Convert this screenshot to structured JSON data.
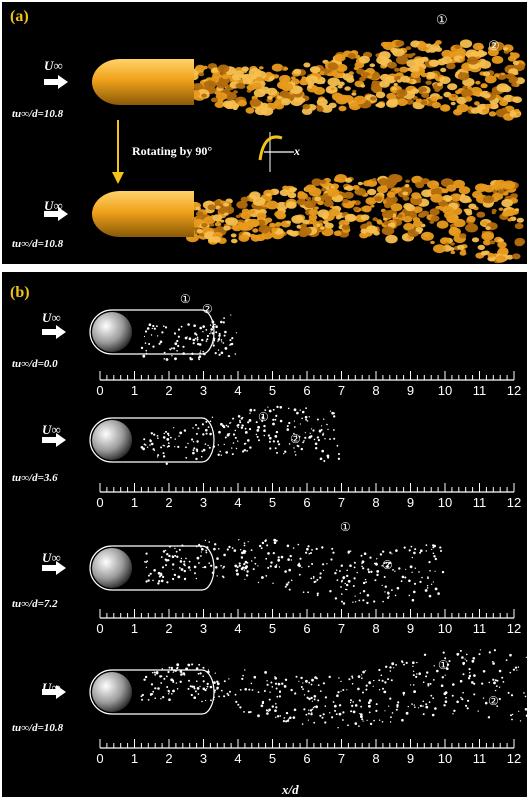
{
  "panel_a": {
    "label": "(a)",
    "freestream": "U∞",
    "time_top": "tu∞/d=10.8",
    "time_bottom": "tu∞/d=10.8",
    "rotation_text": "Rotating by 90°",
    "axis_x": "x",
    "marker1": "①",
    "marker2": "②",
    "colors": {
      "body": "#f0a21a",
      "wake": "#e89a1c",
      "arrow": "#f2c318"
    }
  },
  "panel_b": {
    "label": "(b)",
    "axis_label": "x/d",
    "tick_labels": [
      "0",
      "1",
      "2",
      "3",
      "4",
      "5",
      "6",
      "7",
      "8",
      "9",
      "10",
      "11",
      "12"
    ],
    "rows": [
      {
        "time": "tu∞/d=0.0",
        "marker1": "①",
        "marker2": "②"
      },
      {
        "time": "tu∞/d=3.6",
        "marker1": "①",
        "marker2": "②"
      },
      {
        "time": "tu∞/d=7.2",
        "marker1": "①",
        "marker2": "②"
      },
      {
        "time": "tu∞/d=10.8",
        "marker1": "①",
        "marker2": "②"
      }
    ]
  }
}
